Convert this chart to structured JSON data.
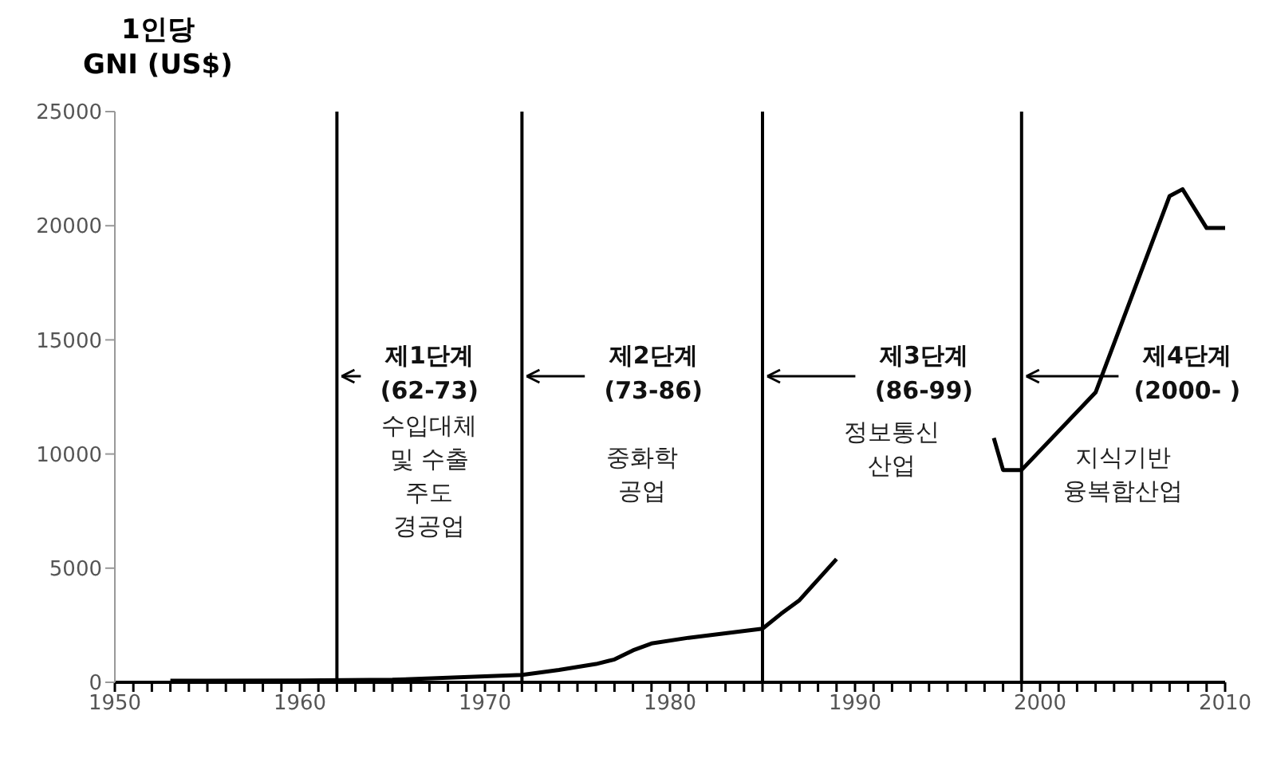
{
  "chart_data": {
    "type": "line",
    "ylabel": "1인당\nGNI (US$)",
    "xlim": [
      1950,
      2010
    ],
    "xticks": [
      1950,
      {
        "value": 1951,
        "label": null
      },
      {
        "value": 1952,
        "label": null
      },
      {
        "value": 1953,
        "label": null
      },
      {
        "value": 1954,
        "label": null
      },
      {
        "value": 1955,
        "label": null
      },
      {
        "value": 1956,
        "label": null
      },
      {
        "value": 1957,
        "label": null
      },
      {
        "value": 1958,
        "label": null
      },
      {
        "value": 1959,
        "label": null
      },
      1960,
      {
        "value": 1961,
        "label": null
      },
      {
        "value": 1962,
        "label": null
      },
      {
        "value": 1963,
        "label": null
      },
      {
        "value": 1964,
        "label": null
      },
      {
        "value": 1965,
        "label": null
      },
      {
        "value": 1966,
        "label": null
      },
      {
        "value": 1967,
        "label": null
      },
      {
        "value": 1968,
        "label": null
      },
      {
        "value": 1969,
        "label": null
      },
      1970,
      {
        "value": 1971,
        "label": null
      },
      {
        "value": 1972,
        "label": null
      },
      {
        "value": 1973,
        "label": null
      },
      {
        "value": 1974,
        "label": null
      },
      {
        "value": 1975,
        "label": null
      },
      {
        "value": 1976,
        "label": null
      },
      {
        "value": 1977,
        "label": null
      },
      {
        "value": 1978,
        "label": null
      },
      {
        "value": 1979,
        "label": null
      },
      1980,
      {
        "value": 1981,
        "label": null
      },
      {
        "value": 1982,
        "label": null
      },
      {
        "value": 1983,
        "label": null
      },
      {
        "value": 1984,
        "label": null
      },
      {
        "value": 1985,
        "label": null
      },
      {
        "value": 1986,
        "label": null
      },
      {
        "value": 1987,
        "label": null
      },
      {
        "value": 1988,
        "label": null
      },
      {
        "value": 1989,
        "label": null
      },
      1990,
      {
        "value": 1991,
        "label": null
      },
      {
        "value": 1992,
        "label": null
      },
      {
        "value": 1993,
        "label": null
      },
      {
        "value": 1994,
        "label": null
      },
      {
        "value": 1995,
        "label": null
      },
      {
        "value": 1996,
        "label": null
      },
      {
        "value": 1997,
        "label": null
      },
      {
        "value": 1998,
        "label": null
      },
      {
        "value": 1999,
        "label": null
      },
      2000,
      {
        "value": 2001,
        "label": null
      },
      {
        "value": 2002,
        "label": null
      },
      {
        "value": 2003,
        "label": null
      },
      {
        "value": 2004,
        "label": null
      },
      {
        "value": 2005,
        "label": null
      },
      {
        "value": 2006,
        "label": null
      },
      {
        "value": 2007,
        "label": null
      },
      {
        "value": 2008,
        "label": null
      },
      {
        "value": 2009,
        "label": null
      },
      2010
    ],
    "ylim": [
      0,
      25000
    ],
    "yticks": [
      0,
      5000,
      10000,
      15000,
      20000,
      25000
    ],
    "marker": "none",
    "line_style": "solid",
    "series": [
      {
        "color": "#000000",
        "x": [
          1953,
          1955,
          1960,
          1965,
          1968,
          1970,
          1972,
          1974,
          1976,
          1977,
          1978,
          1979,
          1981,
          1983,
          1985,
          1986,
          1987,
          1988,
          1989
        ],
        "values": [
          70,
          70,
          80,
          110,
          200,
          260,
          320,
          540,
          800,
          1000,
          1400,
          1700,
          1950,
          2150,
          2350,
          3000,
          3600,
          4500,
          5400
        ]
      },
      {
        "color": "#000000",
        "x": [
          1997.5,
          1998,
          1999,
          2003,
          2007,
          2007.7,
          2009,
          2010
        ],
        "values": [
          10700,
          9300,
          9300,
          12700,
          21300,
          21600,
          19900,
          19900
        ]
      }
    ],
    "ref_lines": [
      {
        "axis": "x",
        "value": 1962,
        "label": "제1단계\n(62-73)",
        "color": "#000000"
      },
      {
        "axis": "x",
        "value": 1972,
        "label": "제2단계\n(73-86)",
        "color": "#000000"
      },
      {
        "axis": "x",
        "value": 1985,
        "label": "제3단계\n(86-99)",
        "color": "#000000"
      },
      {
        "axis": "x",
        "value": 1999,
        "label": "제4단계\n(2000- )",
        "color": "#000000"
      }
    ],
    "annotations": [
      "수입대체\n및 수출\n주도\n경공업",
      "중화학\n공업",
      "정보통신\n산업",
      "지식기반\n융복합산업"
    ]
  }
}
